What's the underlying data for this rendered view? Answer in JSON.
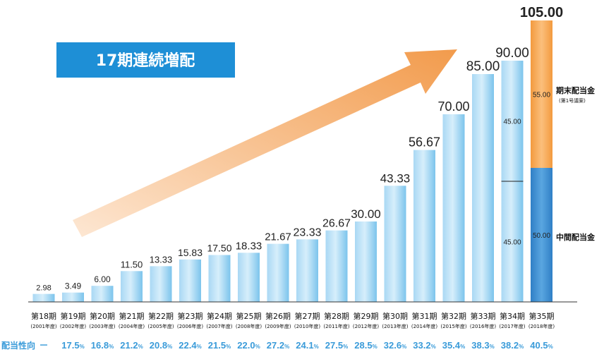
{
  "banner": {
    "text": "17期連続増配",
    "color": "#1e8fd6"
  },
  "payout_ratio_label": "配当性向",
  "payout_dash": "－",
  "payout_ratio_percents": [
    null,
    null,
    null,
    null,
    null,
    null,
    null,
    null,
    null,
    null,
    null,
    null,
    null,
    null,
    null,
    null,
    null,
    null
  ],
  "chart_data": {
    "type": "bar",
    "categories": [
      "第18期",
      "第19期",
      "第20期",
      "第21期",
      "第22期",
      "第23期",
      "第24期",
      "第25期",
      "第26期",
      "第27期",
      "第28期",
      "第29期",
      "第30期",
      "第31期",
      "第32期",
      "第33期",
      "第34期",
      "第35期"
    ],
    "fiscal_years": [
      "(2001年度)",
      "(2002年度)",
      "(2003年度)",
      "(2004年度)",
      "(2005年度)",
      "(2006年度)",
      "(2007年度)",
      "(2008年度)",
      "(2009年度)",
      "(2010年度)",
      "(2011年度)",
      "(2012年度)",
      "(2013年度)",
      "(2014年度)",
      "(2015年度)",
      "(2016年度)",
      "(2017年度)",
      "(2018年度)"
    ],
    "values": [
      2.98,
      3.49,
      6.0,
      11.5,
      13.33,
      15.83,
      17.5,
      18.33,
      21.67,
      23.33,
      26.67,
      30.0,
      43.33,
      56.67,
      70.0,
      85.0,
      90.0,
      105.0
    ],
    "value_labels": [
      "2.98",
      "3.49",
      "6.00",
      "11.50",
      "13.33",
      "15.83",
      "17.50",
      "18.33",
      "21.67",
      "23.33",
      "26.67",
      "30.00",
      "43.33",
      "56.67",
      "70.00",
      "85.00",
      "90.00",
      "105.00"
    ],
    "payout_ratio": [
      "17.5",
      "16.8",
      "21.2",
      "20.8",
      "22.4",
      "21.5",
      "22.0",
      "27.2",
      "24.1",
      "27.5",
      "28.5",
      "32.6",
      "33.2",
      "35.4",
      "38.3",
      "38.2",
      "40.5"
    ],
    "payout_ratio_first": "－",
    "percent_sign": "%",
    "split_bars": [
      {
        "category": "第34期",
        "interim": 45.0,
        "year_end": 45.0,
        "interim_label": "45.00",
        "year_end_label": "45.00"
      },
      {
        "category": "第35期",
        "interim": 50.0,
        "year_end": 55.0,
        "interim_label": "50.00",
        "year_end_label": "55.00"
      }
    ],
    "legend": [
      {
        "name": "期末配当金",
        "note": "(第1号議案)",
        "color": "#f5a04a"
      },
      {
        "name": "中間配当金",
        "color": "#3c8fd4"
      }
    ],
    "ylim": [
      0,
      105
    ],
    "colors": {
      "bar_light": "#bfe3f7",
      "bar_dark": "#6cbdea",
      "interim": "#3c8fd4",
      "year_end": "#f5a04a",
      "arrow_start": "#fbe3cf",
      "arrow_end": "#f2a45c",
      "axis": "#333333"
    }
  }
}
